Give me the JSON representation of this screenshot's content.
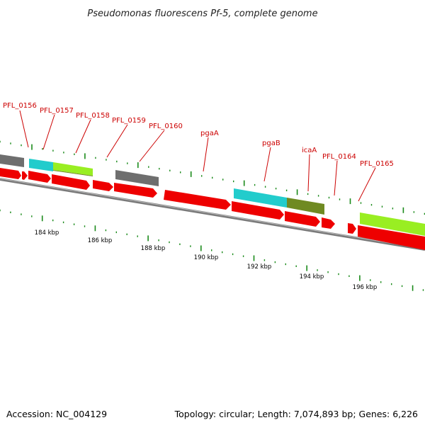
{
  "title": "Pseudomonas fluorescens Pf-5, complete genome",
  "footer": {
    "accession": "Accession: NC_004129",
    "summary": "Topology: circular; Length: 7,074,893 bp; Genes: 6,226"
  },
  "colors": {
    "cds": "#ee0000",
    "gray_feature": "#6e6e6e",
    "cyan_feature": "#22cccc",
    "lime_feature": "#99ee22",
    "olive_feature": "#6f8a22",
    "backbone": "#7a7a7a",
    "label": "#cc0000",
    "ticks": "#1a8a1a"
  },
  "gene_labels": [
    "PFL_0156",
    "PFL_0157",
    "PFL_0158",
    "PFL_0159",
    "PFL_0160",
    "pgaA",
    "pgaB",
    "icaA",
    "PFL_0164",
    "PFL_0165"
  ],
  "tick_labels": [
    "184 kbp",
    "186 kbp",
    "188 kbp",
    "190 kbp",
    "192 kbp",
    "194 kbp",
    "196 kbp"
  ]
}
